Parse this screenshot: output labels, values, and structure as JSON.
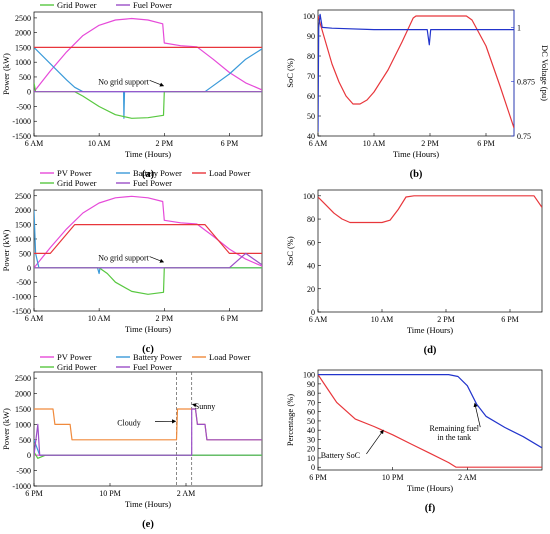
{
  "colors": {
    "pv": "#e64ad9",
    "battery": "#3a9ad9",
    "load": "#e8363b",
    "grid": "#58c840",
    "fuel": "#9b4ec8",
    "load_e": "#f08a3c",
    "soc": "#e8363b",
    "voltage": "#2234cc",
    "fuel_f": "#2234cc"
  },
  "legend_labels": {
    "pv": "PV Power",
    "battery": "Battery Power",
    "load": "Load Power",
    "grid": "Grid Power",
    "fuel": "Fuel Power"
  },
  "panels": [
    {
      "id": "a",
      "label": "(a)",
      "type": "line",
      "xlabel": "Time (Hours)",
      "ylabel": "Power (kW)",
      "xlim": [
        6,
        20
      ],
      "ylim": [
        -1500,
        2700
      ],
      "yticks": [
        -1500,
        -1000,
        -500,
        0,
        500,
        1000,
        1500,
        2000,
        2500
      ],
      "xticks": [
        {
          "v": 6,
          "t": "6 AM"
        },
        {
          "v": 10,
          "t": "10 AM"
        },
        {
          "v": 14,
          "t": "2 PM"
        },
        {
          "v": 18,
          "t": "6 PM"
        }
      ],
      "legend": true,
      "annotation": {
        "text": "No grid support",
        "arrow_to": [
          13.95,
          200
        ],
        "text_at": [
          11.5,
          250
        ]
      },
      "series": [
        {
          "key": "pv",
          "points": [
            [
              6,
              0
            ],
            [
              7,
              700
            ],
            [
              8,
              1350
            ],
            [
              9,
              1900
            ],
            [
              10,
              2250
            ],
            [
              11,
              2430
            ],
            [
              12,
              2480
            ],
            [
              13,
              2430
            ],
            [
              13.9,
              2300
            ],
            [
              14,
              1650
            ],
            [
              15,
              1560
            ],
            [
              16,
              1520
            ],
            [
              17,
              1100
            ],
            [
              18,
              650
            ],
            [
              19,
              300
            ],
            [
              20,
              60
            ]
          ]
        },
        {
          "key": "battery",
          "points": [
            [
              6,
              1500
            ],
            [
              7,
              950
            ],
            [
              8,
              400
            ],
            [
              8.5,
              150
            ],
            [
              9,
              0
            ],
            [
              11.5,
              0
            ],
            [
              11.52,
              -900
            ],
            [
              11.56,
              0
            ],
            [
              14,
              0
            ],
            [
              16.5,
              0
            ],
            [
              17,
              200
            ],
            [
              18,
              600
            ],
            [
              19,
              1100
            ],
            [
              20,
              1450
            ]
          ]
        },
        {
          "key": "load",
          "points": [
            [
              6,
              1500
            ],
            [
              20,
              1500
            ]
          ]
        },
        {
          "key": "grid",
          "points": [
            [
              6,
              300
            ],
            [
              6.1,
              0
            ],
            [
              8.5,
              0
            ],
            [
              9,
              -150
            ],
            [
              10,
              -500
            ],
            [
              11,
              -780
            ],
            [
              12,
              -900
            ],
            [
              13,
              -880
            ],
            [
              13.95,
              -800
            ],
            [
              14,
              0
            ],
            [
              20,
              0
            ]
          ]
        },
        {
          "key": "fuel",
          "points": [
            [
              6,
              0
            ],
            [
              20,
              0
            ]
          ]
        }
      ]
    },
    {
      "id": "b",
      "label": "(b)",
      "type": "line",
      "xlabel": "Time (Hours)",
      "ylabel": "SoC (%)",
      "ylabel_right": "DC Voltage (pu)",
      "xlim": [
        6,
        20
      ],
      "ylim": [
        40,
        103
      ],
      "yticks": [
        40,
        50,
        60,
        70,
        80,
        90,
        100
      ],
      "y2lim": [
        0.75,
        1.04
      ],
      "y2ticks": [
        {
          "v": 0.75,
          "t": "0.75"
        },
        {
          "v": 0.875,
          "t": "0.875"
        },
        {
          "v": 1,
          "t": "1"
        }
      ],
      "xticks": [
        {
          "v": 6,
          "t": "6 AM"
        },
        {
          "v": 10,
          "t": "10 AM"
        },
        {
          "v": 14,
          "t": "2 PM"
        },
        {
          "v": 18,
          "t": "6 PM"
        }
      ],
      "legend": false,
      "series": [
        {
          "key": "soc",
          "points": [
            [
              6,
              100
            ],
            [
              6.5,
              88
            ],
            [
              7,
              76
            ],
            [
              7.5,
              67
            ],
            [
              8,
              60
            ],
            [
              8.5,
              56
            ],
            [
              9,
              56
            ],
            [
              9.5,
              58
            ],
            [
              10,
              62
            ],
            [
              11,
              73
            ],
            [
              12,
              87
            ],
            [
              12.8,
              99
            ],
            [
              13,
              100
            ],
            [
              16.6,
              100
            ],
            [
              17,
              98
            ],
            [
              18,
              85
            ],
            [
              19,
              65
            ],
            [
              20,
              44
            ]
          ]
        },
        {
          "key": "voltage",
          "axis": "right",
          "points": [
            [
              6,
              0.76
            ],
            [
              6.05,
              1.0
            ],
            [
              6.15,
              1.03
            ],
            [
              6.3,
              1.0
            ],
            [
              7,
              0.998
            ],
            [
              10,
              0.995
            ],
            [
              13.8,
              0.995
            ],
            [
              13.95,
              0.96
            ],
            [
              14.05,
              0.995
            ],
            [
              20,
              0.995
            ]
          ]
        }
      ]
    },
    {
      "id": "c",
      "label": "(c)",
      "type": "line",
      "xlabel": "Time (Hours)",
      "ylabel": "Power (kW)",
      "xlim": [
        6,
        20
      ],
      "ylim": [
        -1500,
        2700
      ],
      "yticks": [
        -1500,
        -1000,
        -500,
        0,
        500,
        1000,
        1500,
        2000,
        2500
      ],
      "xticks": [
        {
          "v": 6,
          "t": "6 AM"
        },
        {
          "v": 10,
          "t": "10 AM"
        },
        {
          "v": 14,
          "t": "2 PM"
        },
        {
          "v": 18,
          "t": "6 PM"
        }
      ],
      "legend": true,
      "annotation": {
        "text": "No grid support",
        "arrow_to": [
          13.95,
          200
        ],
        "text_at": [
          11.5,
          250
        ]
      },
      "series": [
        {
          "key": "pv",
          "points": [
            [
              6,
              0
            ],
            [
              7,
              700
            ],
            [
              8,
              1350
            ],
            [
              9,
              1900
            ],
            [
              10,
              2250
            ],
            [
              11,
              2430
            ],
            [
              12,
              2480
            ],
            [
              13,
              2430
            ],
            [
              13.9,
              2300
            ],
            [
              14,
              1650
            ],
            [
              15,
              1560
            ],
            [
              16,
              1520
            ],
            [
              17,
              1100
            ],
            [
              18,
              650
            ],
            [
              19,
              300
            ],
            [
              20,
              60
            ]
          ]
        },
        {
          "key": "battery",
          "points": [
            [
              6,
              2000
            ],
            [
              6.1,
              500
            ],
            [
              6.3,
              0
            ],
            [
              9.9,
              0
            ],
            [
              10,
              -200
            ],
            [
              10.05,
              0
            ],
            [
              20,
              0
            ]
          ]
        },
        {
          "key": "load",
          "points": [
            [
              6,
              500
            ],
            [
              7,
              500
            ],
            [
              8.5,
              1500
            ],
            [
              16.5,
              1500
            ],
            [
              18,
              500
            ],
            [
              20,
              500
            ]
          ]
        },
        {
          "key": "grid",
          "points": [
            [
              6,
              0
            ],
            [
              10,
              0
            ],
            [
              10.5,
              -200
            ],
            [
              11,
              -500
            ],
            [
              12,
              -820
            ],
            [
              13,
              -920
            ],
            [
              13.95,
              -850
            ],
            [
              14,
              0
            ],
            [
              20,
              0
            ]
          ]
        },
        {
          "key": "fuel",
          "points": [
            [
              6,
              0
            ],
            [
              18,
              0
            ],
            [
              19,
              500
            ],
            [
              20,
              100
            ]
          ]
        }
      ]
    },
    {
      "id": "d",
      "label": "(d)",
      "type": "line",
      "xlabel": "Time (Hours)",
      "ylabel": "SoC (%)",
      "xlim": [
        6,
        20
      ],
      "ylim": [
        0,
        105
      ],
      "yticks": [
        0,
        20,
        40,
        60,
        80,
        100
      ],
      "xticks": [
        {
          "v": 6,
          "t": "6 AM"
        },
        {
          "v": 10,
          "t": "10 AM"
        },
        {
          "v": 14,
          "t": "2 PM"
        },
        {
          "v": 18,
          "t": "6 PM"
        }
      ],
      "legend": false,
      "series": [
        {
          "key": "soc",
          "points": [
            [
              6,
              99
            ],
            [
              6.5,
              92
            ],
            [
              7,
              85
            ],
            [
              7.5,
              80
            ],
            [
              8,
              77
            ],
            [
              9,
              77
            ],
            [
              10,
              77
            ],
            [
              10.5,
              79
            ],
            [
              11,
              88
            ],
            [
              11.5,
              99
            ],
            [
              12,
              100
            ],
            [
              19.5,
              100
            ],
            [
              20,
              90
            ]
          ]
        }
      ]
    },
    {
      "id": "e",
      "label": "(e)",
      "type": "line",
      "xlabel": "Time (Hours)",
      "ylabel": "Power (kW)",
      "xlim": [
        18,
        30
      ],
      "ylim": [
        -1000,
        2700
      ],
      "yticks": [
        -1000,
        -500,
        0,
        500,
        1000,
        1500,
        2000,
        2500
      ],
      "xticks": [
        {
          "v": 18,
          "t": "6 PM"
        },
        {
          "v": 22,
          "t": "10 PM"
        },
        {
          "v": 26,
          "t": "2 AM"
        }
      ],
      "legend": true,
      "legend_load_color": "load_e",
      "vlines": [
        25.5,
        26.3
      ],
      "annotations": [
        {
          "text": "Cloudy",
          "arrow_to": [
            25.45,
            1100
          ],
          "text_at": [
            23.0,
            960
          ]
        },
        {
          "text": "Sunny",
          "arrow_to": [
            26.35,
            1650
          ],
          "text_at": [
            27.0,
            1500
          ]
        }
      ],
      "series": [
        {
          "key": "pv",
          "points": [
            [
              18,
              0
            ],
            [
              30,
              0
            ]
          ]
        },
        {
          "key": "battery",
          "points": [
            [
              18,
              500
            ],
            [
              18.3,
              0
            ],
            [
              30,
              0
            ]
          ]
        },
        {
          "key": "load_e",
          "points": [
            [
              18,
              1500
            ],
            [
              19,
              1500
            ],
            [
              19.1,
              1000
            ],
            [
              19.9,
              1000
            ],
            [
              20,
              500
            ],
            [
              25.5,
              500
            ],
            [
              25.55,
              1500
            ],
            [
              26.5,
              1500
            ],
            [
              26.6,
              1000
            ],
            [
              27,
              1000
            ],
            [
              27.1,
              500
            ],
            [
              30,
              500
            ]
          ]
        },
        {
          "key": "grid",
          "points": [
            [
              18,
              100
            ],
            [
              18.2,
              -100
            ],
            [
              18.6,
              0
            ],
            [
              30,
              0
            ]
          ]
        },
        {
          "key": "fuel",
          "points": [
            [
              18,
              0
            ],
            [
              18.2,
              1000
            ],
            [
              18.3,
              0
            ],
            [
              25.5,
              0
            ],
            [
              26.3,
              0
            ],
            [
              26.3,
              1500
            ],
            [
              26.5,
              1500
            ],
            [
              26.6,
              1000
            ],
            [
              27,
              1000
            ],
            [
              27.1,
              500
            ],
            [
              30,
              500
            ]
          ]
        }
      ]
    },
    {
      "id": "f",
      "label": "(f)",
      "type": "line",
      "xlabel": "Time (Hours)",
      "ylabel": "Percentage (%)",
      "xlim": [
        18,
        30
      ],
      "ylim": [
        -3,
        105
      ],
      "yticks": [
        0,
        10,
        20,
        30,
        40,
        50,
        60,
        70,
        80,
        90,
        100
      ],
      "xticks": [
        {
          "v": 18,
          "t": "6 PM"
        },
        {
          "v": 22,
          "t": "10 PM"
        },
        {
          "v": 26,
          "t": "2 AM"
        }
      ],
      "legend": false,
      "annotations": [
        {
          "text": "Battery SoC",
          "arrow_to": [
            21.5,
            40
          ],
          "text_at": [
            19.2,
            10
          ]
        },
        {
          "text": "Remaining fuel",
          "text2": "in the tank",
          "arrow_to": [
            26.4,
            69
          ],
          "text_at": [
            25.3,
            39
          ]
        }
      ],
      "series": [
        {
          "key": "soc",
          "points": [
            [
              18,
              100
            ],
            [
              18.5,
              85
            ],
            [
              19,
              70
            ],
            [
              20,
              52
            ],
            [
              21,
              44
            ],
            [
              22,
              35
            ],
            [
              23,
              25
            ],
            [
              24,
              15
            ],
            [
              25,
              5
            ],
            [
              25.4,
              0
            ],
            [
              30,
              0
            ]
          ]
        },
        {
          "key": "fuel_f",
          "points": [
            [
              18,
              100
            ],
            [
              25,
              100
            ],
            [
              25.5,
              98
            ],
            [
              26,
              88
            ],
            [
              26.5,
              68
            ],
            [
              27,
              55
            ],
            [
              28,
              43
            ],
            [
              29,
              33
            ],
            [
              30,
              21
            ]
          ]
        }
      ]
    }
  ]
}
